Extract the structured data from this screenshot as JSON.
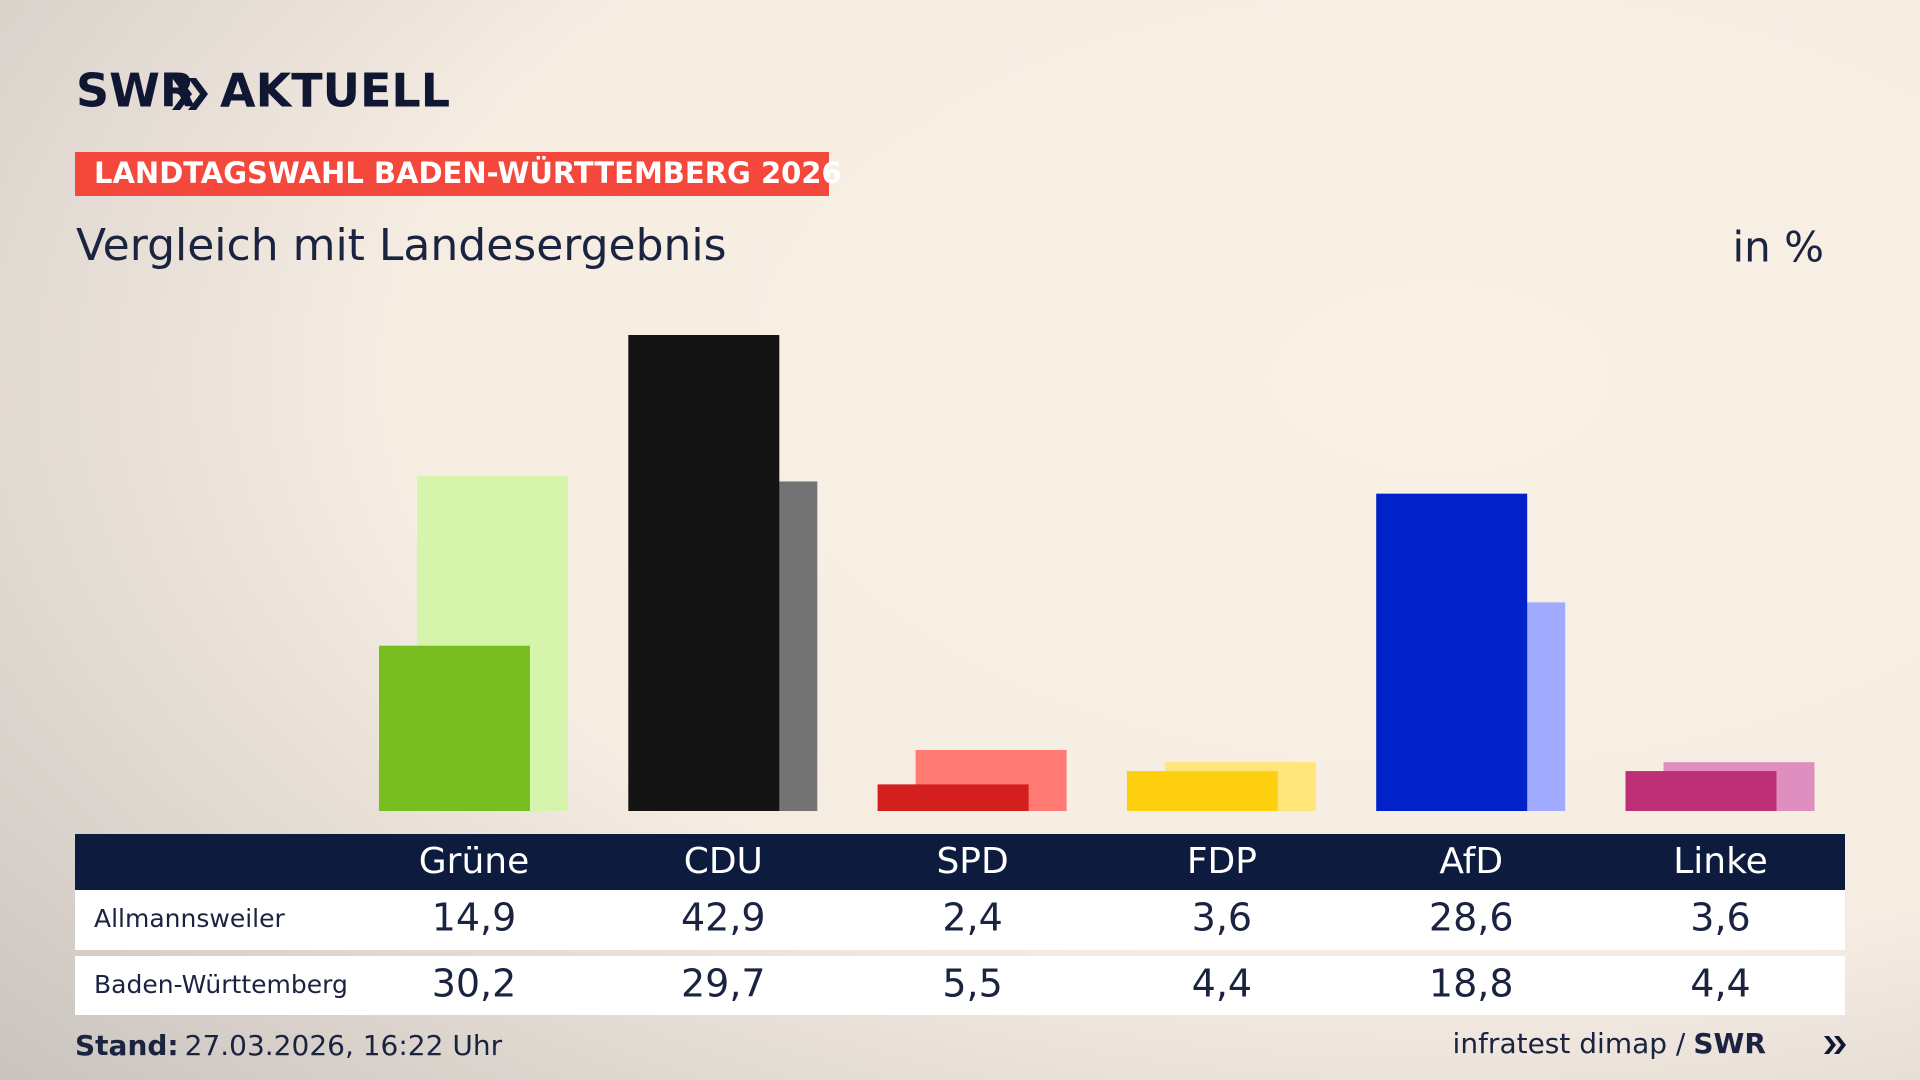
{
  "header": {
    "brand": "SWR",
    "product": "AKTUELL"
  },
  "chart_data": {
    "type": "bar",
    "kicker": "LANDTAGSWAHL BADEN-WÜRTTEMBERG 2026",
    "title": "Vergleich mit Landesergebnis",
    "unit": "in %",
    "categories": [
      "Grüne",
      "CDU",
      "SPD",
      "FDP",
      "AfD",
      "Linke"
    ],
    "series": [
      {
        "name": "Allmannsweiler",
        "colors": [
          "#78be1e",
          "#141414",
          "#d41f1f",
          "#ffd010",
          "#0022c8",
          "#bd3075"
        ],
        "values": [
          14.9,
          42.9,
          2.4,
          3.6,
          28.6,
          3.6
        ],
        "value_labels": [
          "14,9",
          "42,9",
          "2,4",
          "3,6",
          "28,6",
          "3,6"
        ]
      },
      {
        "name": "Baden-Württemberg",
        "colors": [
          "#d5f5ad",
          "#737373",
          "#ff7a73",
          "#ffe57a",
          "#a0aaff",
          "#df8fbf"
        ],
        "values": [
          30.2,
          29.7,
          5.5,
          4.4,
          18.8,
          4.4
        ],
        "value_labels": [
          "30,2",
          "29,7",
          "5,5",
          "4,4",
          "18,8",
          "4,4"
        ]
      }
    ]
  },
  "footer": {
    "stand_label": "Stand:",
    "stand": "27.03.2026, 16:22 Uhr",
    "source": "infratest dimap /",
    "source_brand": "SWR"
  }
}
